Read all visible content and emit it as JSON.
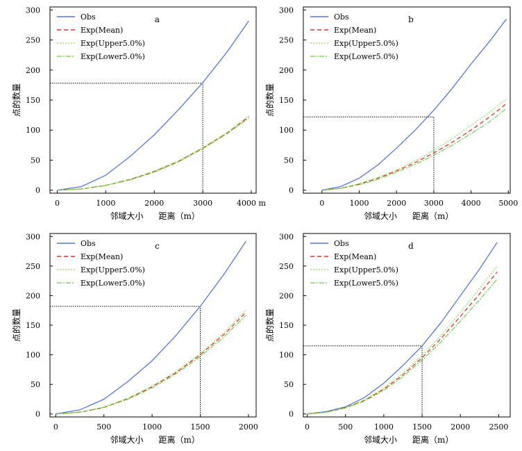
{
  "chart_data": [
    {
      "type": "line",
      "panel_label": "a",
      "xlabel_left": "邻域大小",
      "xlabel_right": "距离（m）",
      "ylabel": "点的数量",
      "x_tick_labels": [
        "0",
        "1000",
        "2000",
        "3000",
        "4000 m"
      ],
      "y_tick_labels": [
        "0",
        "50",
        "100",
        "150",
        "200",
        "250",
        "300"
      ],
      "xlim": [
        -150,
        4100
      ],
      "ylim": [
        -5,
        305
      ],
      "legend": [
        "Obs",
        "Exp(Mean)",
        "Exp(Upper5.0%)",
        "Exp(Lower5.0%)"
      ],
      "reference": {
        "x": 3000,
        "y": 178
      },
      "x": [
        0,
        500,
        1000,
        1500,
        2000,
        2500,
        3000,
        3500,
        3950
      ],
      "series": [
        {
          "name": "Obs",
          "values": [
            0,
            6,
            25,
            56,
            92,
            134,
            179,
            230,
            282
          ]
        },
        {
          "name": "Exp(Mean)",
          "values": [
            0,
            2,
            8,
            18,
            31,
            48,
            70,
            95,
            122
          ]
        },
        {
          "name": "Exp(Upper5.0%)",
          "values": [
            0,
            2,
            8,
            18,
            32,
            49,
            71,
            96,
            124
          ]
        },
        {
          "name": "Exp(Lower5.0%)",
          "values": [
            0,
            2,
            8,
            17,
            30,
            47,
            69,
            94,
            120
          ]
        }
      ]
    },
    {
      "type": "line",
      "panel_label": "b",
      "xlabel_left": "邻域大小",
      "xlabel_right": "距离（m）",
      "ylabel": "点的数量",
      "x_tick_labels": [
        "0",
        "1000",
        "2000",
        "3000",
        "4000",
        "5000"
      ],
      "y_tick_labels": [
        "0",
        "50",
        "100",
        "150",
        "200",
        "250",
        "300"
      ],
      "xlim": [
        -500,
        5050
      ],
      "ylim": [
        -5,
        305
      ],
      "legend": [
        "Obs",
        "Exp(Mean)",
        "Exp(Upper5.0%)",
        "Exp(Lower5.0%)"
      ],
      "reference": {
        "x": 3000,
        "y": 122
      },
      "x": [
        0,
        500,
        1000,
        1500,
        2000,
        2500,
        3000,
        3500,
        4000,
        4500,
        4950
      ],
      "series": [
        {
          "name": "Obs",
          "values": [
            0,
            6,
            20,
            42,
            70,
            100,
            133,
            170,
            210,
            248,
            285
          ]
        },
        {
          "name": "Exp(Mean)",
          "values": [
            0,
            3,
            10,
            20,
            32,
            46,
            62,
            80,
            100,
            122,
            144
          ]
        },
        {
          "name": "Exp(Upper5.0%)",
          "values": [
            0,
            3,
            11,
            21,
            34,
            49,
            66,
            86,
            108,
            130,
            152
          ]
        },
        {
          "name": "Exp(Lower5.0%)",
          "values": [
            0,
            3,
            9,
            18,
            30,
            43,
            58,
            75,
            94,
            114,
            136
          ]
        }
      ]
    },
    {
      "type": "line",
      "panel_label": "c",
      "xlabel_left": "邻域大小",
      "xlabel_right": "距离（m）",
      "ylabel": "点的数量",
      "x_tick_labels": [
        "0",
        "500",
        "1000",
        "1500",
        "2000"
      ],
      "y_tick_labels": [
        "0",
        "50",
        "100",
        "150",
        "200",
        "250",
        "300"
      ],
      "xlim": [
        -60,
        2080
      ],
      "ylim": [
        -5,
        305
      ],
      "legend": [
        "Obs",
        "Exp(Mean)",
        "Exp(Upper5.0%)",
        "Exp(Lower5.0%)"
      ],
      "reference": {
        "x": 1500,
        "y": 182
      },
      "x": [
        0,
        250,
        500,
        750,
        1000,
        1250,
        1500,
        1750,
        1975
      ],
      "series": [
        {
          "name": "Obs",
          "values": [
            0,
            7,
            25,
            55,
            90,
            133,
            182,
            237,
            292
          ]
        },
        {
          "name": "Exp(Mean)",
          "values": [
            0,
            3,
            11,
            26,
            46,
            70,
            100,
            135,
            172
          ]
        },
        {
          "name": "Exp(Upper5.0%)",
          "values": [
            0,
            3,
            12,
            27,
            47,
            72,
            102,
            138,
            176
          ]
        },
        {
          "name": "Exp(Lower5.0%)",
          "values": [
            0,
            3,
            11,
            25,
            44,
            68,
            97,
            131,
            167
          ]
        }
      ]
    },
    {
      "type": "line",
      "panel_label": "d",
      "xlabel_left": "邻域大小",
      "xlabel_right": "距离（m）",
      "ylabel": "点的数量",
      "x_tick_labels": [
        "0",
        "500",
        "1000",
        "1500",
        "2000",
        "2500"
      ],
      "y_tick_labels": [
        "0",
        "50",
        "100",
        "150",
        "200",
        "250",
        "300"
      ],
      "xlim": [
        -50,
        2650
      ],
      "ylim": [
        -5,
        305
      ],
      "legend": [
        "Obs",
        "Exp(Mean)",
        "Exp(Upper5.0%)",
        "Exp(Lower5.0%)"
      ],
      "reference": {
        "x": 1500,
        "y": 115
      },
      "x": [
        0,
        250,
        500,
        750,
        1000,
        1250,
        1500,
        1750,
        2000,
        2250,
        2480
      ],
      "series": [
        {
          "name": "Obs",
          "values": [
            0,
            4,
            12,
            28,
            52,
            82,
            115,
            155,
            200,
            245,
            290
          ]
        },
        {
          "name": "Exp(Mean)",
          "values": [
            0,
            3,
            11,
            23,
            42,
            66,
            95,
            128,
            165,
            203,
            240
          ]
        },
        {
          "name": "Exp(Upper5.0%)",
          "values": [
            0,
            3,
            11,
            24,
            44,
            69,
            99,
            133,
            172,
            212,
            250
          ]
        },
        {
          "name": "Exp(Lower5.0%)",
          "values": [
            0,
            3,
            10,
            22,
            40,
            63,
            91,
            122,
            157,
            193,
            228
          ]
        }
      ]
    }
  ],
  "colors": {
    "Obs": "#5577dd",
    "Exp(Mean)": "#e03030",
    "Exp(Upper5.0%)": "#88dd44",
    "Exp(Lower5.0%)": "#66cc33",
    "reference": "#000000"
  }
}
